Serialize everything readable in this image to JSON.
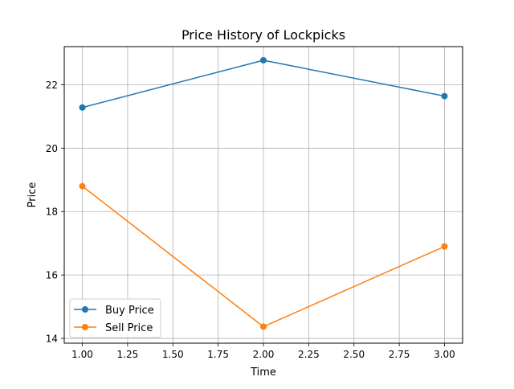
{
  "chart_data": {
    "type": "line",
    "title": "Price History of Lockpicks",
    "xlabel": "Time",
    "ylabel": "Price",
    "x": [
      1.0,
      2.0,
      3.0
    ],
    "series": [
      {
        "name": "Buy Price",
        "values": [
          21.28,
          22.77,
          21.64
        ],
        "color": "#1f77b4"
      },
      {
        "name": "Sell Price",
        "values": [
          18.8,
          14.37,
          16.9
        ],
        "color": "#ff7f0e"
      }
    ],
    "xlim": [
      0.9,
      3.1
    ],
    "ylim": [
      13.85,
      23.2
    ],
    "xticks": [
      1.0,
      1.25,
      1.5,
      1.75,
      2.0,
      2.25,
      2.5,
      2.75,
      3.0
    ],
    "xtick_labels": [
      "1.00",
      "1.25",
      "1.50",
      "1.75",
      "2.00",
      "2.25",
      "2.50",
      "2.75",
      "3.00"
    ],
    "yticks": [
      14,
      16,
      18,
      20,
      22
    ],
    "ytick_labels": [
      "14",
      "16",
      "18",
      "20",
      "22"
    ],
    "grid": true,
    "legend_position": "lower-left"
  }
}
